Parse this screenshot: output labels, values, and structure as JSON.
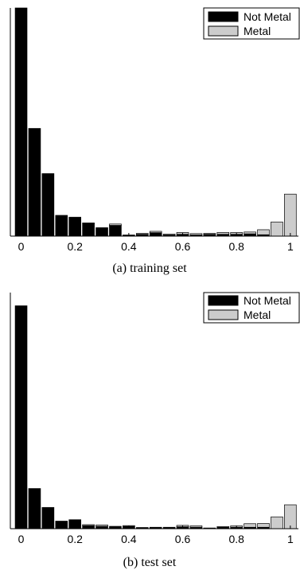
{
  "chart_data": [
    {
      "type": "bar",
      "caption": "(a)  training set",
      "x": [
        0,
        0.05,
        0.1,
        0.15,
        0.2,
        0.25,
        0.3,
        0.35,
        0.4,
        0.45,
        0.5,
        0.55,
        0.6,
        0.65,
        0.7,
        0.75,
        0.8,
        0.85,
        0.9,
        0.95,
        1.0
      ],
      "xticks": [
        0,
        0.2,
        0.4,
        0.6,
        0.8,
        1
      ],
      "xtick_labels": [
        "0",
        "0.2",
        "0.4",
        "0.6",
        "0.8",
        "1"
      ],
      "xlim": [
        -0.04,
        1.03
      ],
      "ylim": [
        0,
        1.0
      ],
      "legend_position": "top-right",
      "series": [
        {
          "name": "Not Metal",
          "color": "#000000",
          "values": [
            1.0,
            0.472,
            0.274,
            0.091,
            0.083,
            0.058,
            0.037,
            0.047,
            0.005,
            0.008,
            0.015,
            0.005,
            0.008,
            0.005,
            0.008,
            0.008,
            0.008,
            0.01,
            0.006,
            0.0,
            0.0
          ]
        },
        {
          "name": "Metal",
          "color": "#cccccc",
          "values": [
            0.0,
            0.0,
            0.0,
            0.0,
            0.0,
            0.0,
            0.0,
            0.006,
            0.0,
            0.004,
            0.006,
            0.004,
            0.008,
            0.006,
            0.004,
            0.008,
            0.008,
            0.008,
            0.022,
            0.062,
            0.184
          ]
        }
      ]
    },
    {
      "type": "bar",
      "caption": "(b)  test set",
      "x": [
        0,
        0.05,
        0.1,
        0.15,
        0.2,
        0.25,
        0.3,
        0.35,
        0.4,
        0.45,
        0.5,
        0.55,
        0.6,
        0.65,
        0.7,
        0.75,
        0.8,
        0.85,
        0.9,
        0.95,
        1.0
      ],
      "xticks": [
        0,
        0.2,
        0.4,
        0.6,
        0.8,
        1
      ],
      "xtick_labels": [
        "0",
        "0.2",
        "0.4",
        "0.6",
        "0.8",
        "1"
      ],
      "xlim": [
        -0.04,
        1.03
      ],
      "ylim": [
        0,
        1.0
      ],
      "legend_position": "top-right",
      "series": [
        {
          "name": "Not Metal",
          "color": "#000000",
          "values": [
            0.944,
            0.17,
            0.09,
            0.032,
            0.038,
            0.013,
            0.01,
            0.01,
            0.01,
            0.005,
            0.006,
            0.006,
            0.008,
            0.006,
            0.003,
            0.006,
            0.006,
            0.006,
            0.006,
            0.0,
            0.0
          ]
        },
        {
          "name": "Metal",
          "color": "#cccccc",
          "values": [
            0.0,
            0.0,
            0.0,
            0.0,
            0.0,
            0.004,
            0.006,
            0.0,
            0.003,
            0.0,
            0.0,
            0.0,
            0.006,
            0.006,
            0.0,
            0.003,
            0.006,
            0.015,
            0.016,
            0.05,
            0.101
          ]
        }
      ]
    }
  ]
}
